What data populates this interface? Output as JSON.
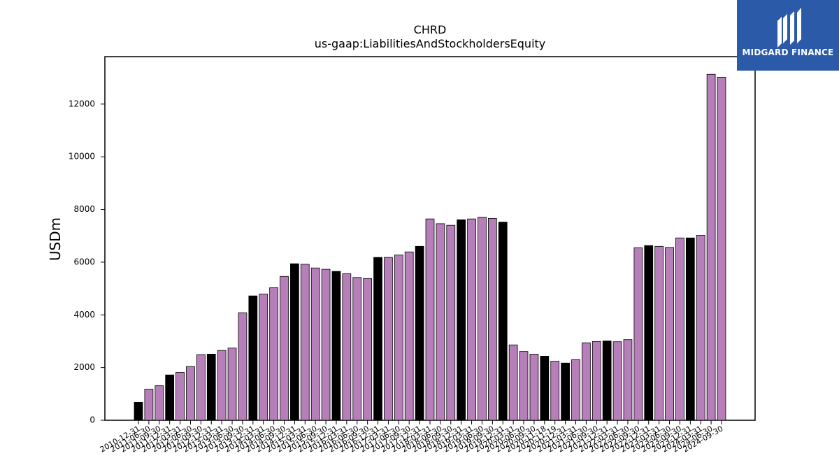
{
  "chart_data": {
    "type": "bar",
    "title": "CHRD",
    "subtitle": "us-gaap:LiabilitiesAndStockholdersEquity",
    "ylabel": "USDm",
    "xlabel": "",
    "ylim": [
      0,
      13800
    ],
    "yticks": [
      0,
      2000,
      4000,
      6000,
      8000,
      10000,
      12000
    ],
    "grid": false,
    "colors": {
      "annual": "#000000",
      "quarterly": "#b77fba"
    },
    "categories": [
      "2010-12-31",
      "2011-06-30",
      "2011-09-30",
      "2011-12-31",
      "2012-03-31",
      "2012-06-30",
      "2012-09-30",
      "2012-12-31",
      "2013-03-31",
      "2013-06-30",
      "2013-09-30",
      "2013-12-31",
      "2014-03-31",
      "2014-06-30",
      "2014-09-30",
      "2014-12-31",
      "2015-03-31",
      "2015-06-30",
      "2015-09-30",
      "2015-12-31",
      "2016-03-31",
      "2016-06-30",
      "2016-09-30",
      "2016-12-31",
      "2017-03-31",
      "2017-06-30",
      "2017-09-30",
      "2017-12-31",
      "2018-03-31",
      "2018-06-30",
      "2018-09-30",
      "2018-12-31",
      "2019-03-31",
      "2019-06-30",
      "2019-09-30",
      "2019-12-31",
      "2020-03-31",
      "2020-06-30",
      "2020-09-30",
      "2020-11-18",
      "2020-11-19",
      "2020-12-31",
      "2021-03-31",
      "2021-06-30",
      "2021-09-30",
      "2021-12-31",
      "2022-03-31",
      "2022-06-30",
      "2022-09-30",
      "2022-12-31",
      "2023-03-31",
      "2023-06-30",
      "2023-09-30",
      "2023-12-31",
      "2024-03-31",
      "2024-06-30",
      "2024-09-30"
    ],
    "values": [
      680,
      1180,
      1310,
      1720,
      1820,
      2040,
      2490,
      2510,
      2650,
      2740,
      4080,
      4720,
      4790,
      5030,
      5460,
      5940,
      5920,
      5780,
      5730,
      5650,
      5560,
      5420,
      5380,
      6180,
      6180,
      6270,
      6390,
      6600,
      7640,
      7460,
      7400,
      7610,
      7640,
      7710,
      7660,
      7520,
      2860,
      2610,
      2510,
      2430,
      2240,
      2170,
      2300,
      2940,
      2990,
      3010,
      2980,
      3060,
      6550,
      6630,
      6600,
      6560,
      6920,
      6920,
      7020,
      13130,
      13020
    ],
    "annual_flags": [
      1,
      0,
      0,
      1,
      0,
      0,
      0,
      1,
      0,
      0,
      0,
      1,
      0,
      0,
      0,
      1,
      0,
      0,
      0,
      1,
      0,
      0,
      0,
      1,
      0,
      0,
      0,
      1,
      0,
      0,
      0,
      1,
      0,
      0,
      0,
      1,
      0,
      0,
      0,
      1,
      0,
      1,
      0,
      0,
      0,
      1,
      0,
      0,
      0,
      1,
      0,
      0,
      0,
      1,
      0,
      0,
      0
    ]
  },
  "logo": {
    "text": "MIDGARD FINANCE",
    "color": "#2b5aa8"
  }
}
